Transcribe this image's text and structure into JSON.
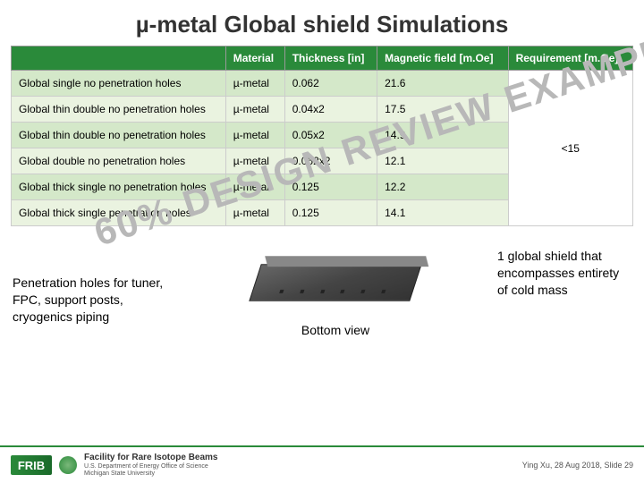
{
  "title": "µ-metal Global shield Simulations",
  "watermark": "60% DESIGN REVIEW EXAMPLE",
  "table": {
    "headers": [
      "",
      "Material",
      "Thickness [in]",
      "Magnetic field [m.Oe]",
      "Requirement [m.Oe]"
    ],
    "rows": [
      {
        "name": "Global single no penetration holes",
        "material": "µ-metal",
        "thickness": "0.062",
        "field": "21.6"
      },
      {
        "name": "Global thin double no penetration holes",
        "material": "µ-metal",
        "thickness": "0.04x2",
        "field": "17.5"
      },
      {
        "name": "Global thin double no penetration holes",
        "material": "µ-metal",
        "thickness": "0.05x2",
        "field": "14.9"
      },
      {
        "name": "Global double no penetration holes",
        "material": "µ-metal",
        "thickness": "0.062x2",
        "field": "12.1"
      },
      {
        "name": "Global thick single no penetration holes",
        "material": "µ-metal",
        "thickness": "0.125",
        "field": "12.2"
      },
      {
        "name": "Global thick single penetration holes",
        "material": "µ-metal",
        "thickness": "0.125",
        "field": "14.1"
      }
    ],
    "requirement": "<15",
    "row_colors": [
      "#d4e8c9",
      "#eaf3e0"
    ],
    "header_bg": "#2a8a3a",
    "header_fg": "#ffffff"
  },
  "left_note": "Penetration holes for tuner, FPC, support posts, cryogenics piping",
  "bottom_view_label": "Bottom view",
  "right_note": "1 global shield that encompasses entirety of cold mass",
  "footer": {
    "brand": "FRIB",
    "facility_line1": "Facility for Rare Isotope Beams",
    "facility_line2": "U.S. Department of Energy Office of Science",
    "facility_line3": "Michigan State University",
    "credit": "Ying Xu, 28 Aug 2018, Slide 29"
  }
}
